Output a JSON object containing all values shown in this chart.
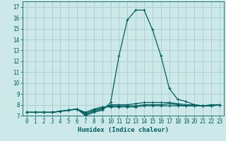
{
  "xlabel": "Humidex (Indice chaleur)",
  "ylabel": "",
  "bg_color": "#cce8e8",
  "line_color": "#006060",
  "grid_color": "#aacccc",
  "xlim": [
    -0.5,
    23.5
  ],
  "ylim": [
    7,
    17.5
  ],
  "xticks": [
    0,
    1,
    2,
    3,
    4,
    5,
    6,
    7,
    8,
    9,
    10,
    11,
    12,
    13,
    14,
    15,
    16,
    17,
    18,
    19,
    20,
    21,
    22,
    23
  ],
  "yticks": [
    7,
    8,
    9,
    10,
    11,
    12,
    13,
    14,
    15,
    16,
    17
  ],
  "lines": [
    {
      "x": [
        0,
        1,
        2,
        3,
        4,
        5,
        6,
        7,
        8,
        9,
        10,
        11,
        12,
        13,
        14,
        15,
        16,
        17,
        18,
        19,
        20,
        21,
        22,
        23
      ],
      "y": [
        7.3,
        7.3,
        7.3,
        7.3,
        7.4,
        7.5,
        7.6,
        7.0,
        7.3,
        7.5,
        8.2,
        12.5,
        15.8,
        16.7,
        16.7,
        14.9,
        12.5,
        9.5,
        8.5,
        8.3,
        8.0,
        7.9,
        8.0,
        8.0
      ]
    },
    {
      "x": [
        0,
        1,
        2,
        3,
        4,
        5,
        6,
        7,
        8,
        9,
        10,
        11,
        12,
        13,
        14,
        15,
        16,
        17,
        18,
        19,
        20,
        21,
        22,
        23
      ],
      "y": [
        7.3,
        7.3,
        7.3,
        7.3,
        7.4,
        7.5,
        7.6,
        7.1,
        7.4,
        7.6,
        8.0,
        8.0,
        8.0,
        8.1,
        8.2,
        8.2,
        8.2,
        8.2,
        8.1,
        8.0,
        8.0,
        7.9,
        7.9,
        8.0
      ]
    },
    {
      "x": [
        0,
        1,
        2,
        3,
        4,
        5,
        6,
        7,
        8,
        9,
        10,
        11,
        12,
        13,
        14,
        15,
        16,
        17,
        18,
        19,
        20,
        21,
        22,
        23
      ],
      "y": [
        7.3,
        7.3,
        7.3,
        7.3,
        7.4,
        7.5,
        7.6,
        7.2,
        7.5,
        7.7,
        7.9,
        7.9,
        7.9,
        7.9,
        8.0,
        8.0,
        8.0,
        8.1,
        8.0,
        7.9,
        7.9,
        7.9,
        7.9,
        8.0
      ]
    },
    {
      "x": [
        0,
        1,
        2,
        3,
        4,
        5,
        6,
        7,
        8,
        9,
        10,
        11,
        12,
        13,
        14,
        15,
        16,
        17,
        18,
        19,
        20,
        21,
        22,
        23
      ],
      "y": [
        7.3,
        7.3,
        7.3,
        7.3,
        7.4,
        7.5,
        7.6,
        7.3,
        7.6,
        7.8,
        7.8,
        7.8,
        7.8,
        7.8,
        7.9,
        7.9,
        7.9,
        7.9,
        7.9,
        7.9,
        7.9,
        7.9,
        7.9,
        8.0
      ]
    }
  ]
}
